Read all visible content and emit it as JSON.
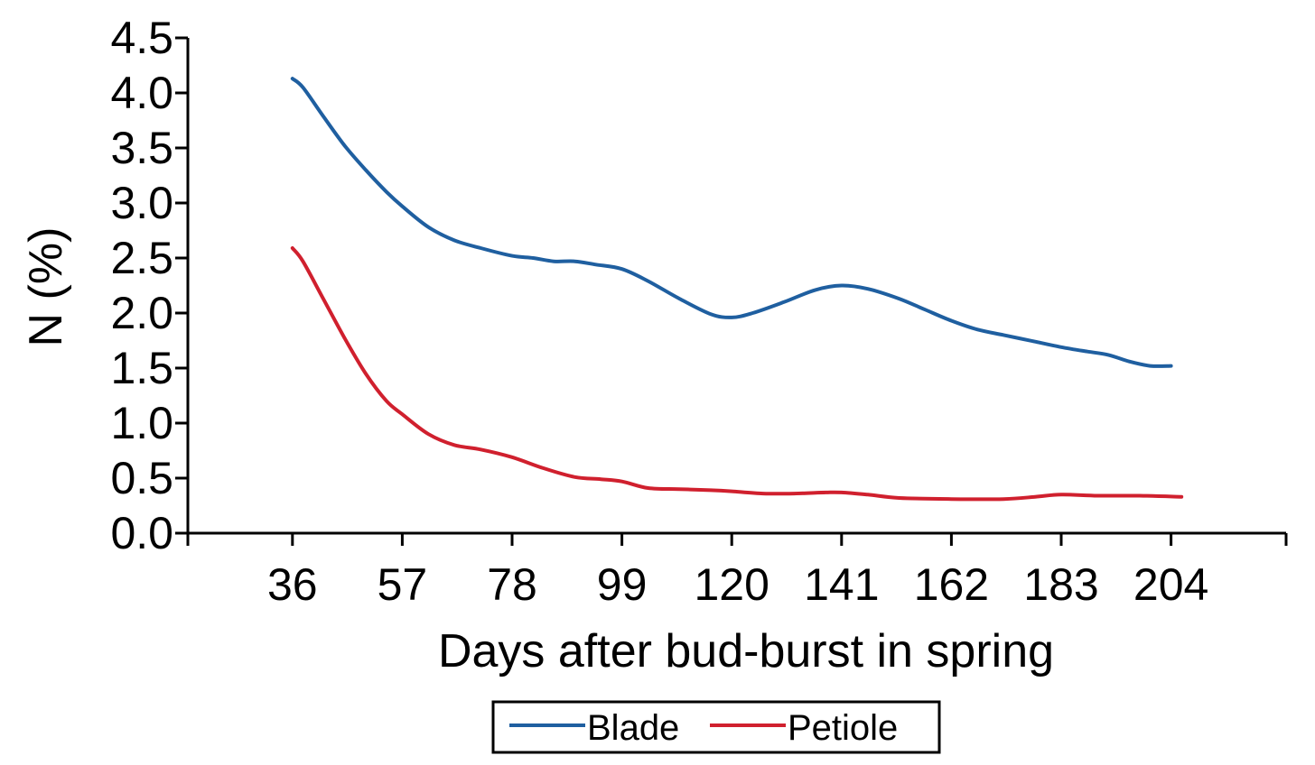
{
  "chart_data": {
    "type": "line",
    "title": "",
    "xlabel": "Days after bud-burst in spring",
    "ylabel": "N (%)",
    "xlim": [
      16,
      226
    ],
    "ylim": [
      0.0,
      4.5
    ],
    "x_ticks": [
      36,
      57,
      78,
      99,
      120,
      141,
      162,
      183,
      204
    ],
    "y_ticks": [
      "0.0",
      "0.5",
      "1.0",
      "1.5",
      "2.0",
      "2.5",
      "3.0",
      "3.5",
      "4.0",
      "4.5"
    ],
    "grid": false,
    "legend_position": "bottom-center",
    "series": [
      {
        "name": "Blade",
        "color": "#1f5fa0",
        "points": [
          [
            36,
            4.13
          ],
          [
            38,
            4.05
          ],
          [
            42,
            3.78
          ],
          [
            46,
            3.52
          ],
          [
            50,
            3.3
          ],
          [
            54,
            3.1
          ],
          [
            57,
            2.97
          ],
          [
            62,
            2.78
          ],
          [
            67,
            2.66
          ],
          [
            72,
            2.59
          ],
          [
            78,
            2.52
          ],
          [
            82,
            2.5
          ],
          [
            86,
            2.47
          ],
          [
            90,
            2.47
          ],
          [
            94,
            2.44
          ],
          [
            99,
            2.4
          ],
          [
            104,
            2.29
          ],
          [
            110,
            2.13
          ],
          [
            116,
            1.99
          ],
          [
            120,
            1.96
          ],
          [
            124,
            2.0
          ],
          [
            130,
            2.1
          ],
          [
            136,
            2.21
          ],
          [
            141,
            2.25
          ],
          [
            146,
            2.22
          ],
          [
            152,
            2.13
          ],
          [
            157,
            2.03
          ],
          [
            162,
            1.93
          ],
          [
            167,
            1.85
          ],
          [
            172,
            1.8
          ],
          [
            178,
            1.74
          ],
          [
            183,
            1.69
          ],
          [
            188,
            1.65
          ],
          [
            192,
            1.62
          ],
          [
            196,
            1.56
          ],
          [
            200,
            1.52
          ],
          [
            204,
            1.52
          ]
        ]
      },
      {
        "name": "Petiole",
        "color": "#d0202e",
        "points": [
          [
            36,
            2.59
          ],
          [
            38,
            2.47
          ],
          [
            42,
            2.12
          ],
          [
            46,
            1.77
          ],
          [
            50,
            1.45
          ],
          [
            54,
            1.2
          ],
          [
            57,
            1.08
          ],
          [
            62,
            0.9
          ],
          [
            67,
            0.8
          ],
          [
            72,
            0.76
          ],
          [
            78,
            0.69
          ],
          [
            84,
            0.59
          ],
          [
            90,
            0.51
          ],
          [
            95,
            0.49
          ],
          [
            99,
            0.47
          ],
          [
            104,
            0.41
          ],
          [
            110,
            0.4
          ],
          [
            116,
            0.39
          ],
          [
            120,
            0.38
          ],
          [
            126,
            0.36
          ],
          [
            132,
            0.36
          ],
          [
            138,
            0.37
          ],
          [
            141,
            0.37
          ],
          [
            146,
            0.35
          ],
          [
            152,
            0.32
          ],
          [
            162,
            0.31
          ],
          [
            172,
            0.31
          ],
          [
            178,
            0.33
          ],
          [
            183,
            0.35
          ],
          [
            190,
            0.34
          ],
          [
            198,
            0.34
          ],
          [
            206,
            0.33
          ]
        ]
      }
    ]
  }
}
